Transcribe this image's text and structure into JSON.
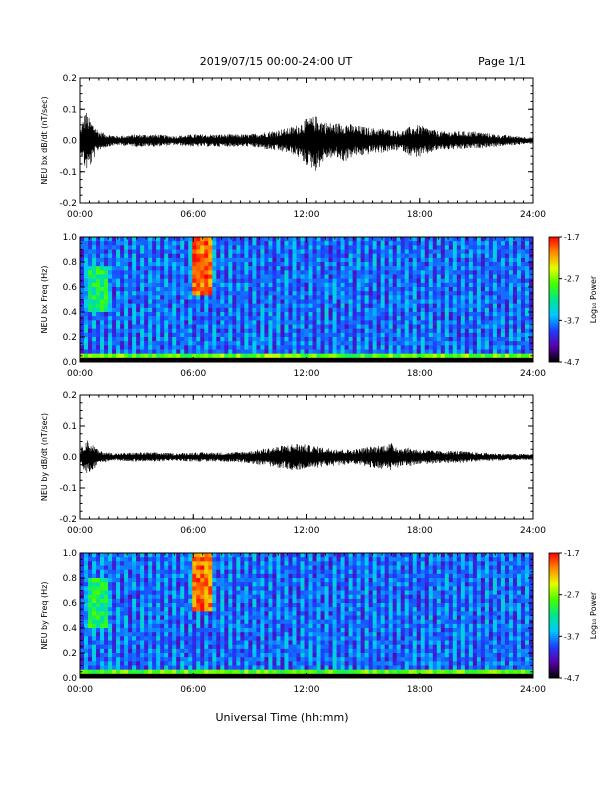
{
  "header": {
    "title": "2019/07/15  00:00-24:00 UT",
    "page": "Page 1/1"
  },
  "xaxis_label": "Universal Time (hh:mm)",
  "colorbar": {
    "label": "Log₁₀ Power",
    "ticks": [
      "-1.7",
      "-2.7",
      "-3.7",
      "-4.7"
    ],
    "range": [
      -4.7,
      -1.7
    ],
    "colors": [
      "#000000",
      "#5a00a8",
      "#1f3cff",
      "#00c8ff",
      "#00e68c",
      "#44ff00",
      "#e6ff00",
      "#ff8c00",
      "#ff0000"
    ]
  },
  "chart_data": [
    {
      "type": "line",
      "ylabel": "NEU bx dB/dt (nT/sec)",
      "xlim": [
        0,
        24
      ],
      "ylim": [
        -0.2,
        0.2
      ],
      "x_ticks": [
        "00:00",
        "06:00",
        "12:00",
        "18:00",
        "24:00"
      ],
      "y_ticks": [
        "0.2",
        "0.1",
        "0.0",
        "-0.1",
        "-0.2"
      ],
      "envelope": {
        "hours": [
          0,
          0.3,
          0.5,
          0.8,
          1.0,
          1.5,
          2,
          3,
          4,
          5,
          6,
          7,
          8,
          9,
          9.5,
          10,
          10.5,
          11,
          11.5,
          12,
          12.5,
          13,
          13.5,
          14,
          14.5,
          15,
          15.5,
          16,
          16.5,
          17,
          17.5,
          18,
          19,
          20,
          21,
          22,
          23,
          24
        ],
        "upper": [
          0.03,
          0.1,
          0.07,
          0.05,
          0.03,
          0.02,
          0.015,
          0.02,
          0.02,
          0.015,
          0.02,
          0.02,
          0.02,
          0.02,
          0.025,
          0.03,
          0.035,
          0.04,
          0.05,
          0.07,
          0.08,
          0.06,
          0.055,
          0.06,
          0.05,
          0.045,
          0.04,
          0.04,
          0.035,
          0.03,
          0.045,
          0.05,
          0.03,
          0.03,
          0.03,
          0.02,
          0.015,
          0.01
        ],
        "lower": [
          -0.03,
          -0.1,
          -0.09,
          -0.05,
          -0.03,
          -0.02,
          -0.015,
          -0.02,
          -0.02,
          -0.015,
          -0.02,
          -0.02,
          -0.02,
          -0.02,
          -0.025,
          -0.03,
          -0.035,
          -0.04,
          -0.05,
          -0.08,
          -0.1,
          -0.06,
          -0.055,
          -0.07,
          -0.05,
          -0.05,
          -0.04,
          -0.04,
          -0.035,
          -0.03,
          -0.05,
          -0.055,
          -0.03,
          -0.03,
          -0.025,
          -0.02,
          -0.015,
          -0.01
        ]
      }
    },
    {
      "type": "heatmap",
      "ylabel": "NEU bx Freq (Hz)",
      "xlim": [
        0,
        24
      ],
      "ylim": [
        0,
        1.0
      ],
      "x_ticks": [
        "00:00",
        "06:00",
        "12:00",
        "18:00",
        "24:00"
      ],
      "y_ticks": [
        "1.0",
        "0.8",
        "0.6",
        "0.4",
        "0.2",
        "0.0"
      ],
      "features": [
        {
          "name": "burst",
          "t_start": 6.0,
          "t_end": 7.0,
          "f_low": 0.55,
          "f_high": 1.0,
          "level": -2.0
        },
        {
          "name": "burst",
          "t_start": 0.4,
          "t_end": 1.4,
          "f_low": 0.4,
          "f_high": 0.78,
          "level": -3.1
        },
        {
          "name": "low-freq band",
          "t_start": 0,
          "t_end": 24,
          "f_low": 0.0,
          "f_high": 0.08,
          "level": -2.8
        }
      ]
    },
    {
      "type": "line",
      "ylabel": "NEU by dB/dt (nT/sec)",
      "xlim": [
        0,
        24
      ],
      "ylim": [
        -0.2,
        0.2
      ],
      "x_ticks": [
        "00:00",
        "06:00",
        "12:00",
        "18:00",
        "24:00"
      ],
      "y_ticks": [
        "0.2",
        "0.1",
        "0.0",
        "-0.1",
        "-0.2"
      ],
      "envelope": {
        "hours": [
          0,
          0.3,
          0.5,
          0.8,
          1.0,
          1.5,
          2,
          3,
          4,
          5,
          6,
          7,
          8,
          9,
          9.5,
          10,
          10.5,
          11,
          11.5,
          12,
          12.5,
          13,
          13.5,
          14,
          14.5,
          15,
          15.5,
          16,
          16.5,
          17,
          17.5,
          18,
          19,
          20,
          21,
          22,
          23,
          24
        ],
        "upper": [
          0.02,
          0.06,
          0.05,
          0.035,
          0.02,
          0.015,
          0.012,
          0.015,
          0.015,
          0.012,
          0.015,
          0.015,
          0.015,
          0.02,
          0.025,
          0.03,
          0.035,
          0.04,
          0.045,
          0.04,
          0.035,
          0.03,
          0.03,
          0.025,
          0.025,
          0.03,
          0.035,
          0.04,
          0.045,
          0.03,
          0.03,
          0.025,
          0.02,
          0.02,
          0.015,
          0.012,
          0.01,
          0.01
        ],
        "lower": [
          -0.02,
          -0.06,
          -0.05,
          -0.035,
          -0.02,
          -0.015,
          -0.012,
          -0.015,
          -0.015,
          -0.012,
          -0.015,
          -0.015,
          -0.015,
          -0.02,
          -0.025,
          -0.03,
          -0.035,
          -0.04,
          -0.045,
          -0.04,
          -0.035,
          -0.03,
          -0.03,
          -0.025,
          -0.025,
          -0.03,
          -0.035,
          -0.04,
          -0.045,
          -0.03,
          -0.03,
          -0.025,
          -0.02,
          -0.02,
          -0.015,
          -0.012,
          -0.01,
          -0.01
        ]
      }
    },
    {
      "type": "heatmap",
      "ylabel": "NEU by Freq (Hz)",
      "xlim": [
        0,
        24
      ],
      "ylim": [
        0,
        1.0
      ],
      "x_ticks": [
        "00:00",
        "06:00",
        "12:00",
        "18:00",
        "24:00"
      ],
      "y_ticks": [
        "1.0",
        "0.8",
        "0.6",
        "0.4",
        "0.2",
        "0.0"
      ],
      "features": [
        {
          "name": "burst",
          "t_start": 6.0,
          "t_end": 7.0,
          "f_low": 0.55,
          "f_high": 1.0,
          "level": -2.0
        },
        {
          "name": "burst",
          "t_start": 0.4,
          "t_end": 1.4,
          "f_low": 0.4,
          "f_high": 0.8,
          "level": -3.1
        },
        {
          "name": "low-freq band",
          "t_start": 0,
          "t_end": 24,
          "f_low": 0.0,
          "f_high": 0.08,
          "level": -2.8
        }
      ]
    }
  ]
}
